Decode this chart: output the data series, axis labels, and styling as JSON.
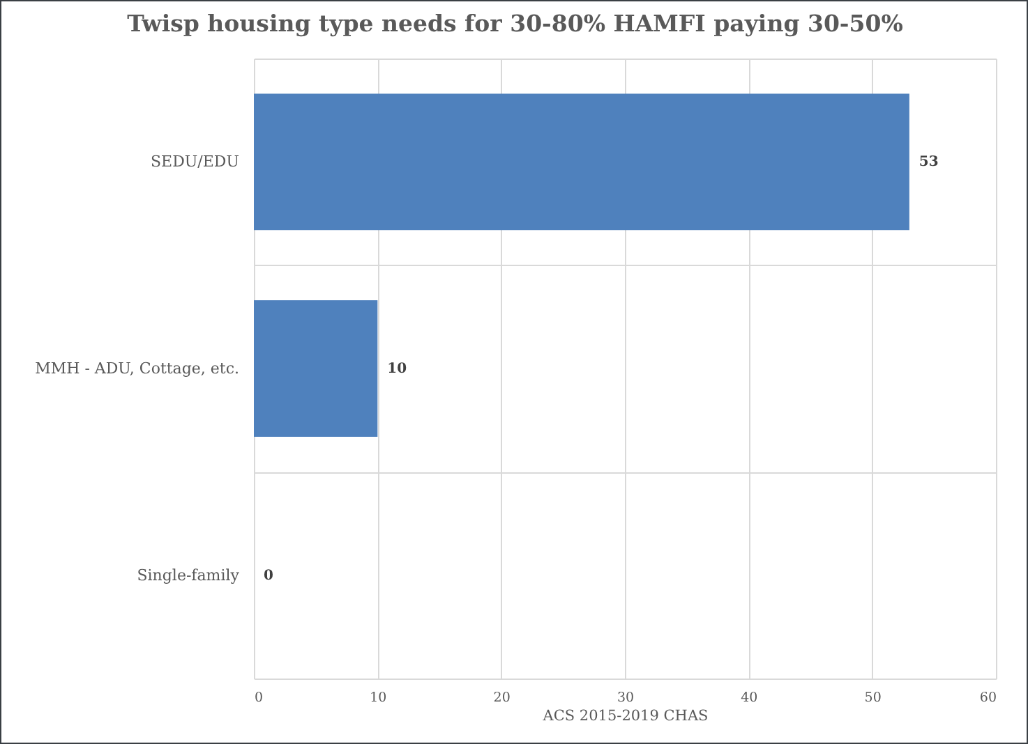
{
  "chart_data": {
    "type": "bar",
    "orientation": "horizontal",
    "title": "Twisp housing type needs for 30-80% HAMFI paying 30-50%",
    "categories": [
      "SEDU/EDU",
      "MMH - ADU, Cottage, etc.",
      "Single-family"
    ],
    "values": [
      53,
      10,
      0
    ],
    "color": "#4f81bd",
    "data_labels": true,
    "xlim": [
      0,
      60
    ],
    "xticks": [
      0,
      10,
      20,
      30,
      40,
      50,
      60
    ],
    "xlabel": "ACS 2015-2019  CHAS",
    "grid": true
  }
}
